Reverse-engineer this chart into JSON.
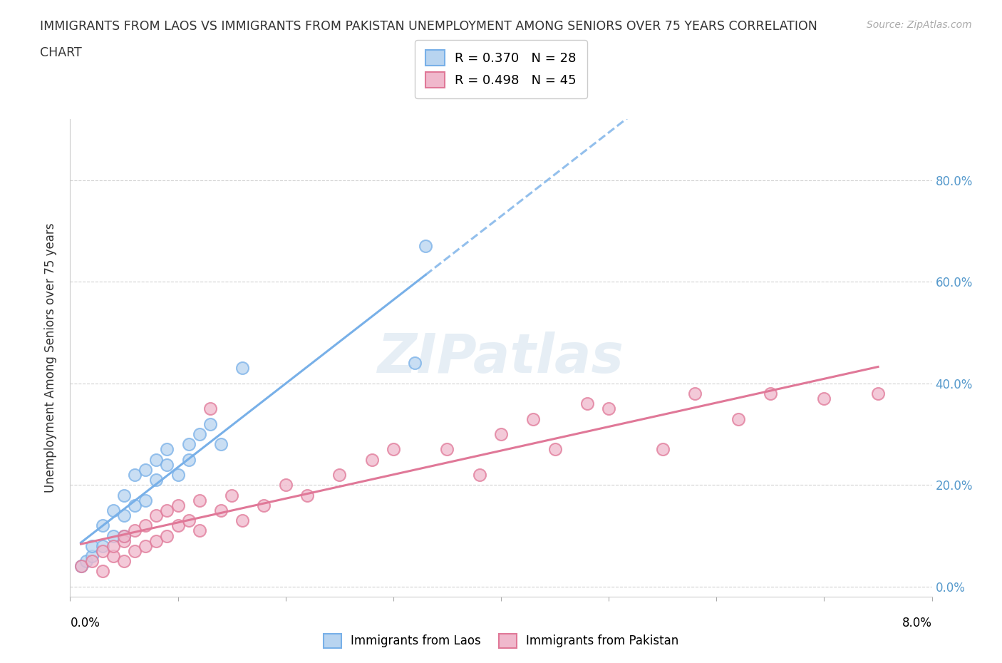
{
  "title_line1": "IMMIGRANTS FROM LAOS VS IMMIGRANTS FROM PAKISTAN UNEMPLOYMENT AMONG SENIORS OVER 75 YEARS CORRELATION",
  "title_line2": "CHART",
  "source": "Source: ZipAtlas.com",
  "ylabel": "Unemployment Among Seniors over 75 years",
  "xlim": [
    0.0,
    0.08
  ],
  "ylim": [
    -0.02,
    0.92
  ],
  "yticks": [
    0.0,
    0.2,
    0.4,
    0.6,
    0.8
  ],
  "ytick_labels": [
    "0.0%",
    "20.0%",
    "40.0%",
    "60.0%",
    "80.0%"
  ],
  "xtick_positions": [
    0.0,
    0.01,
    0.02,
    0.03,
    0.04,
    0.05,
    0.06,
    0.07,
    0.08
  ],
  "legend_r_laos": "R = 0.370",
  "legend_n_laos": "N = 28",
  "legend_r_pak": "R = 0.498",
  "legend_n_pak": "N = 45",
  "color_laos_fill": "#b8d4f0",
  "color_laos_edge": "#78b0e8",
  "color_pakistan_fill": "#f0b8cc",
  "color_pakistan_edge": "#e07898",
  "color_laos_line": "#78b0e8",
  "color_pakistan_line": "#e07898",
  "watermark": "ZIPatlas",
  "laos_x": [
    0.001,
    0.0015,
    0.002,
    0.002,
    0.003,
    0.003,
    0.004,
    0.004,
    0.005,
    0.005,
    0.005,
    0.006,
    0.006,
    0.007,
    0.007,
    0.008,
    0.008,
    0.009,
    0.009,
    0.01,
    0.011,
    0.011,
    0.012,
    0.013,
    0.014,
    0.016,
    0.032,
    0.033
  ],
  "laos_y": [
    0.04,
    0.05,
    0.06,
    0.08,
    0.08,
    0.12,
    0.1,
    0.15,
    0.1,
    0.14,
    0.18,
    0.16,
    0.22,
    0.17,
    0.23,
    0.21,
    0.25,
    0.24,
    0.27,
    0.22,
    0.28,
    0.25,
    0.3,
    0.32,
    0.28,
    0.43,
    0.44,
    0.67
  ],
  "pak_x": [
    0.001,
    0.002,
    0.003,
    0.003,
    0.004,
    0.004,
    0.005,
    0.005,
    0.005,
    0.006,
    0.006,
    0.007,
    0.007,
    0.008,
    0.008,
    0.009,
    0.009,
    0.01,
    0.01,
    0.011,
    0.012,
    0.012,
    0.013,
    0.014,
    0.015,
    0.016,
    0.018,
    0.02,
    0.022,
    0.025,
    0.028,
    0.03,
    0.035,
    0.038,
    0.04,
    0.043,
    0.045,
    0.048,
    0.05,
    0.055,
    0.058,
    0.062,
    0.065,
    0.07,
    0.075
  ],
  "pak_y": [
    0.04,
    0.05,
    0.03,
    0.07,
    0.06,
    0.08,
    0.05,
    0.09,
    0.1,
    0.07,
    0.11,
    0.08,
    0.12,
    0.09,
    0.14,
    0.1,
    0.15,
    0.12,
    0.16,
    0.13,
    0.11,
    0.17,
    0.35,
    0.15,
    0.18,
    0.13,
    0.16,
    0.2,
    0.18,
    0.22,
    0.25,
    0.27,
    0.27,
    0.22,
    0.3,
    0.33,
    0.27,
    0.36,
    0.35,
    0.27,
    0.38,
    0.33,
    0.38,
    0.37,
    0.38
  ]
}
